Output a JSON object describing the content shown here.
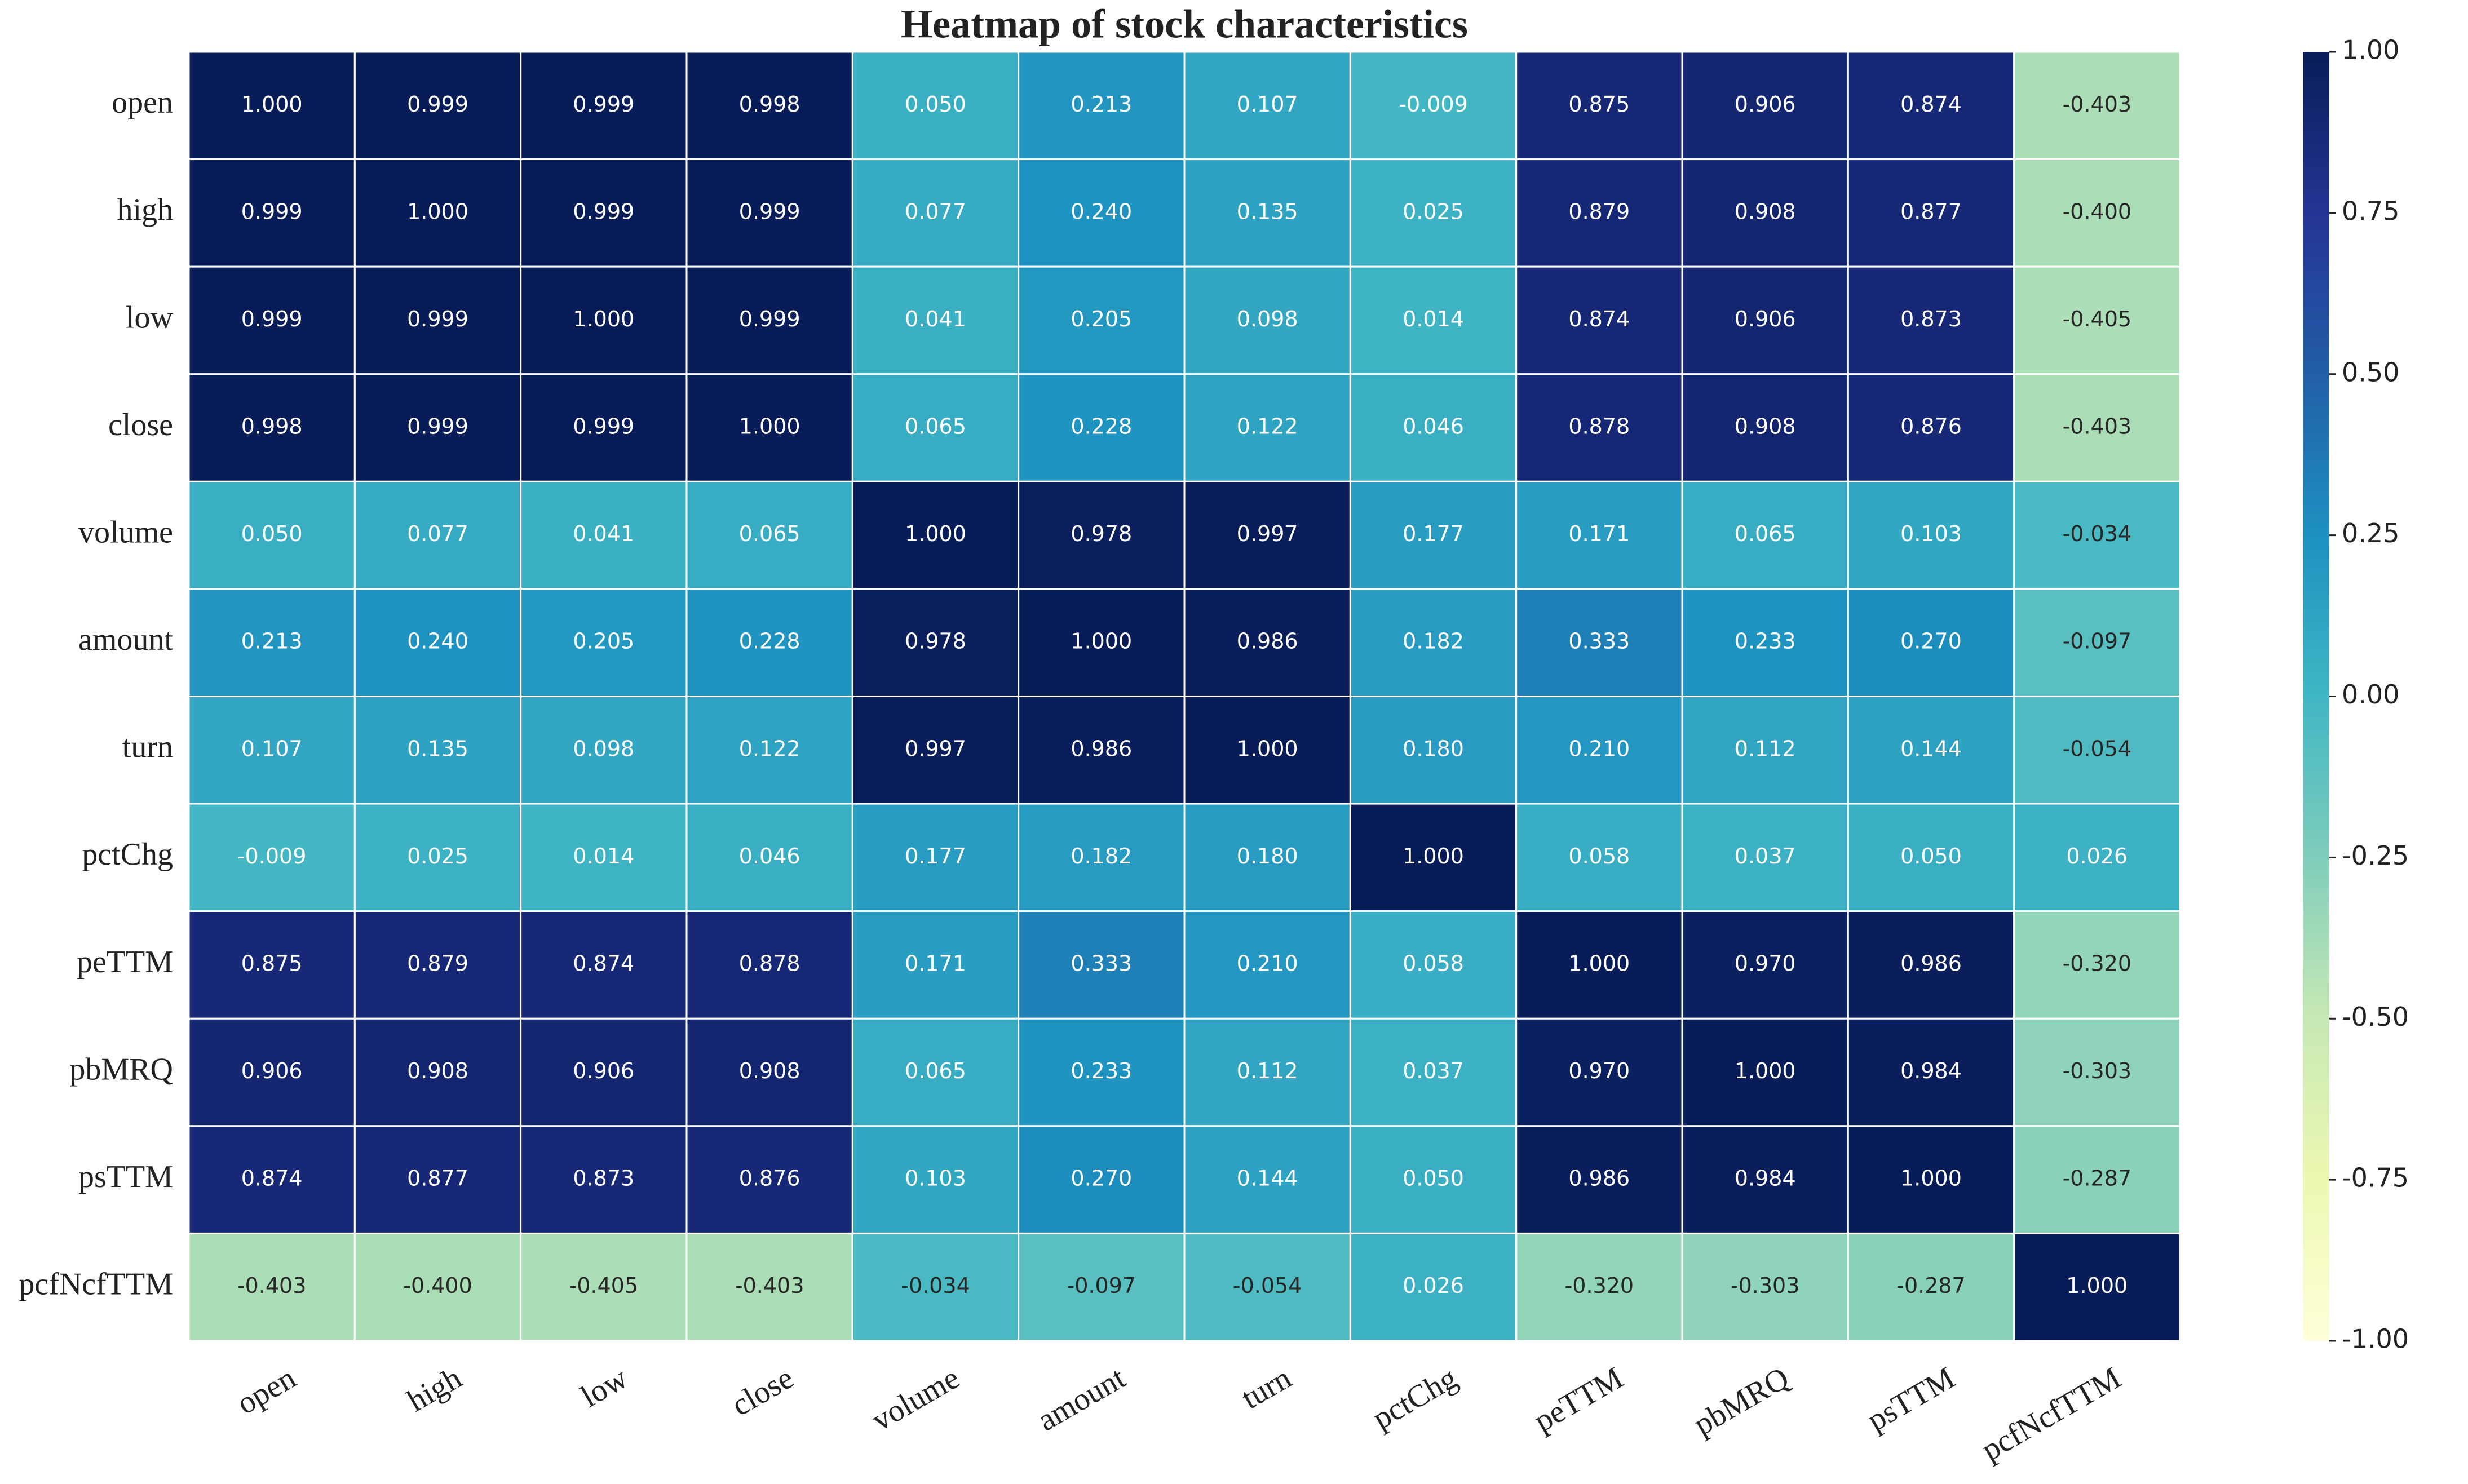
{
  "chart_data": {
    "type": "heatmap",
    "title": "Heatmap of stock characteristics",
    "x_categories": [
      "open",
      "high",
      "low",
      "close",
      "volume",
      "amount",
      "turn",
      "pctChg",
      "peTTM",
      "pbMRQ",
      "psTTM",
      "pcfNcfTTM"
    ],
    "y_categories": [
      "open",
      "high",
      "low",
      "close",
      "volume",
      "amount",
      "turn",
      "pctChg",
      "peTTM",
      "pbMRQ",
      "psTTM",
      "pcfNcfTTM"
    ],
    "values": [
      [
        1.0,
        0.999,
        0.999,
        0.998,
        0.05,
        0.213,
        0.107,
        -0.009,
        0.875,
        0.906,
        0.874,
        -0.403
      ],
      [
        0.999,
        1.0,
        0.999,
        0.999,
        0.077,
        0.24,
        0.135,
        0.025,
        0.879,
        0.908,
        0.877,
        -0.4
      ],
      [
        0.999,
        0.999,
        1.0,
        0.999,
        0.041,
        0.205,
        0.098,
        0.014,
        0.874,
        0.906,
        0.873,
        -0.405
      ],
      [
        0.998,
        0.999,
        0.999,
        1.0,
        0.065,
        0.228,
        0.122,
        0.046,
        0.878,
        0.908,
        0.876,
        -0.403
      ],
      [
        0.05,
        0.077,
        0.041,
        0.065,
        1.0,
        0.978,
        0.997,
        0.177,
        0.171,
        0.065,
        0.103,
        -0.034
      ],
      [
        0.213,
        0.24,
        0.205,
        0.228,
        0.978,
        1.0,
        0.986,
        0.182,
        0.333,
        0.233,
        0.27,
        -0.097
      ],
      [
        0.107,
        0.135,
        0.098,
        0.122,
        0.997,
        0.986,
        1.0,
        0.18,
        0.21,
        0.112,
        0.144,
        -0.054
      ],
      [
        -0.009,
        0.025,
        0.014,
        0.046,
        0.177,
        0.182,
        0.18,
        1.0,
        0.058,
        0.037,
        0.05,
        0.026
      ],
      [
        0.875,
        0.879,
        0.874,
        0.878,
        0.171,
        0.333,
        0.21,
        0.058,
        1.0,
        0.97,
        0.986,
        -0.32
      ],
      [
        0.906,
        0.908,
        0.906,
        0.908,
        0.065,
        0.233,
        0.112,
        0.037,
        0.97,
        1.0,
        0.984,
        -0.303
      ],
      [
        0.874,
        0.877,
        0.873,
        0.876,
        0.103,
        0.27,
        0.144,
        0.05,
        0.986,
        0.984,
        1.0,
        -0.287
      ],
      [
        -0.403,
        -0.4,
        -0.405,
        -0.403,
        -0.034,
        -0.097,
        -0.054,
        0.026,
        -0.32,
        -0.303,
        -0.287,
        1.0
      ]
    ],
    "value_labels": [
      [
        "1.000",
        "0.999",
        "0.999",
        "0.998",
        "0.050",
        "0.213",
        "0.107",
        "-0.009",
        "0.875",
        "0.906",
        "0.874",
        "-0.403"
      ],
      [
        "0.999",
        "1.000",
        "0.999",
        "0.999",
        "0.077",
        "0.240",
        "0.135",
        "0.025",
        "0.879",
        "0.908",
        "0.877",
        "-0.400"
      ],
      [
        "0.999",
        "0.999",
        "1.000",
        "0.999",
        "0.041",
        "0.205",
        "0.098",
        "0.014",
        "0.874",
        "0.906",
        "0.873",
        "-0.405"
      ],
      [
        "0.998",
        "0.999",
        "0.999",
        "1.000",
        "0.065",
        "0.228",
        "0.122",
        "0.046",
        "0.878",
        "0.908",
        "0.876",
        "-0.403"
      ],
      [
        "0.050",
        "0.077",
        "0.041",
        "0.065",
        "1.000",
        "0.978",
        "0.997",
        "0.177",
        "0.171",
        "0.065",
        "0.103",
        "-0.034"
      ],
      [
        "0.213",
        "0.240",
        "0.205",
        "0.228",
        "0.978",
        "1.000",
        "0.986",
        "0.182",
        "0.333",
        "0.233",
        "0.270",
        "-0.097"
      ],
      [
        "0.107",
        "0.135",
        "0.098",
        "0.122",
        "0.997",
        "0.986",
        "1.000",
        "0.180",
        "0.210",
        "0.112",
        "0.144",
        "-0.054"
      ],
      [
        "-0.009",
        "0.025",
        "0.014",
        "0.046",
        "0.177",
        "0.182",
        "0.180",
        "1.000",
        "0.058",
        "0.037",
        "0.050",
        "0.026"
      ],
      [
        "0.875",
        "0.879",
        "0.874",
        "0.878",
        "0.171",
        "0.333",
        "0.210",
        "0.058",
        "1.000",
        "0.970",
        "0.986",
        "-0.320"
      ],
      [
        "0.906",
        "0.908",
        "0.906",
        "0.908",
        "0.065",
        "0.233",
        "0.112",
        "0.037",
        "0.970",
        "1.000",
        "0.984",
        "-0.303"
      ],
      [
        "0.874",
        "0.877",
        "0.873",
        "0.876",
        "0.103",
        "0.270",
        "0.144",
        "0.050",
        "0.986",
        "0.984",
        "1.000",
        "-0.287"
      ],
      [
        "-0.403",
        "-0.400",
        "-0.405",
        "-0.403",
        "-0.034",
        "-0.097",
        "-0.054",
        "0.026",
        "-0.320",
        "-0.303",
        "-0.287",
        "1.000"
      ]
    ],
    "colormap": "YlGnBu",
    "zlim": [
      -1,
      1
    ],
    "zticks": [
      {
        "value": 1,
        "label": "1.00"
      },
      {
        "value": 0.75,
        "label": "0.75"
      },
      {
        "value": 0.5,
        "label": "0.50"
      },
      {
        "value": 0.25,
        "label": "0.25"
      },
      {
        "value": 0,
        "label": "0.00"
      },
      {
        "value": -0.25,
        "label": "-0.25"
      },
      {
        "value": -0.5,
        "label": "-0.50"
      },
      {
        "value": -0.75,
        "label": "-0.75"
      },
      {
        "value": -1,
        "label": "-1.00"
      }
    ]
  }
}
